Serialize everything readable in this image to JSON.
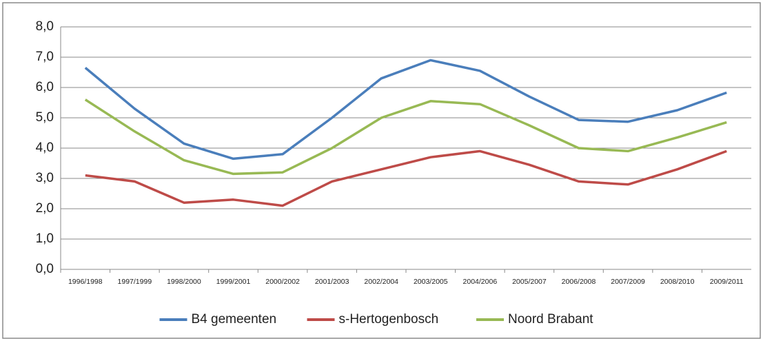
{
  "chart_data": {
    "type": "line",
    "categories": [
      "1996/1998",
      "1997/1999",
      "1998/2000",
      "1999/2001",
      "2000/2002",
      "2001/2003",
      "2002/2004",
      "2003/2005",
      "2004/2006",
      "2005/2007",
      "2006/2008",
      "2007/2009",
      "2008/2010",
      "2009/2011"
    ],
    "series": [
      {
        "name": "B4 gemeenten",
        "color": "#4a7ebb",
        "values": [
          6.65,
          5.3,
          4.15,
          3.65,
          3.8,
          5.0,
          6.3,
          6.9,
          6.55,
          5.7,
          4.93,
          4.87,
          5.25,
          5.83
        ]
      },
      {
        "name": "s-Hertogenbosch",
        "color": "#be4b48",
        "values": [
          3.1,
          2.9,
          2.2,
          2.3,
          2.1,
          2.9,
          3.3,
          3.7,
          3.9,
          3.45,
          2.9,
          2.8,
          3.3,
          3.9
        ]
      },
      {
        "name": "Noord Brabant",
        "color": "#98b954",
        "values": [
          5.6,
          4.55,
          3.6,
          3.15,
          3.2,
          4.0,
          5.0,
          5.55,
          5.45,
          4.75,
          4.0,
          3.9,
          4.35,
          4.85
        ]
      }
    ],
    "ylim": [
      0,
      8
    ],
    "yticks": [
      {
        "value": 0,
        "label": "0,0"
      },
      {
        "value": 1,
        "label": "1,0"
      },
      {
        "value": 2,
        "label": "2,0"
      },
      {
        "value": 3,
        "label": "3,0"
      },
      {
        "value": 4,
        "label": "4,0"
      },
      {
        "value": 5,
        "label": "5,0"
      },
      {
        "value": 6,
        "label": "6,0"
      },
      {
        "value": 7,
        "label": "7,0"
      },
      {
        "value": 8,
        "label": "8,0"
      }
    ],
    "grid": true,
    "legend": "bottom"
  }
}
